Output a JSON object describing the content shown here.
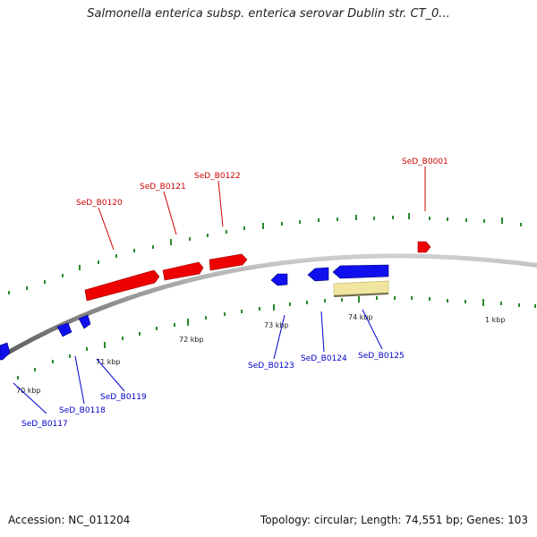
{
  "title": "Salmonella enterica subsp. enterica serovar Dublin str. CT_0...",
  "footer": {
    "accession": "Accession: NC_011204",
    "summary": "Topology: circular; Length: 74,551 bp; Genes: 103"
  },
  "colors": {
    "forward_gene": "#ff0000",
    "reverse_gene": "#0000ee",
    "feature": "#f0e6a0",
    "backbone": "#888888",
    "ticks": "#2a8a2a"
  },
  "kbp_labels": [
    "70 kbp",
    "71 kbp",
    "72 kbp",
    "73 kbp",
    "74 kbp",
    "1 kbp"
  ],
  "forward_labels": [
    "SeD_B0120",
    "SeD_B0121",
    "SeD_B0122",
    "SeD_B0001"
  ],
  "reverse_labels": [
    "SeD_B0117",
    "SeD_B0118",
    "SeD_B0119",
    "SeD_B0123",
    "SeD_B0124",
    "SeD_B0125"
  ]
}
